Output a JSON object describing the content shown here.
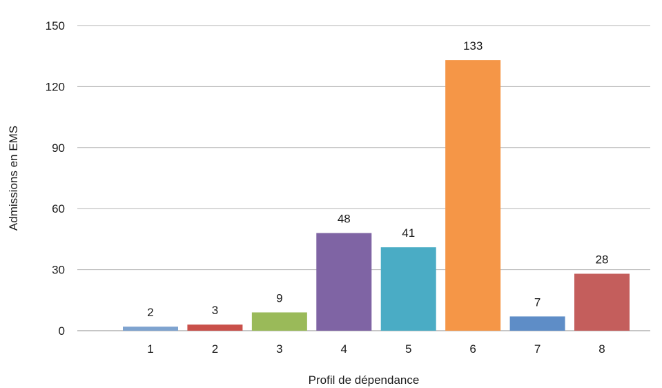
{
  "chart_data": {
    "type": "bar",
    "categories": [
      "1",
      "2",
      "3",
      "4",
      "5",
      "6",
      "7",
      "8"
    ],
    "values": [
      2,
      3,
      9,
      48,
      41,
      133,
      7,
      28
    ],
    "data_labels": [
      "2",
      "3",
      "9",
      "48",
      "41",
      "133",
      "7",
      "28"
    ],
    "bar_colors": [
      "#7ea3cf",
      "#c9504a",
      "#9aba59",
      "#7f64a4",
      "#4aacc5",
      "#f59647",
      "#5e8dc7",
      "#c45e5c"
    ],
    "xlabel": "Profil de dépendance",
    "ylabel": "Admissions en EMS",
    "ylim": [
      0,
      150
    ],
    "yticks": [
      0,
      30,
      60,
      90,
      120,
      150
    ],
    "ytick_labels": [
      "0",
      "30",
      "60",
      "90",
      "120",
      "150"
    ],
    "grid": true,
    "legend": "none"
  }
}
